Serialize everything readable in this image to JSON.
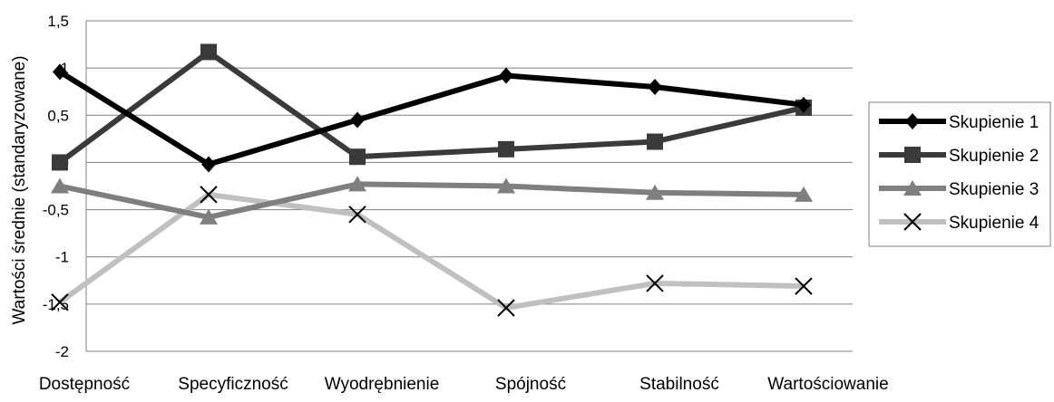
{
  "chart_data": {
    "type": "line",
    "title": "",
    "xlabel": "",
    "ylabel": "Wartości średnie (standaryzowane)",
    "categories": [
      "Dostępność",
      "Specyficzność",
      "Wyodrębnienie",
      "Spójność",
      "Stabilność",
      "Wartościowanie"
    ],
    "ylim": [
      -2,
      1.5
    ],
    "yticks": [
      1.5,
      1,
      0.5,
      0,
      -0.5,
      -1,
      -1.5,
      -2
    ],
    "ytick_labels": [
      "1,5",
      "1",
      "0,5",
      "0",
      "-0,5",
      "-1",
      "-1,5",
      "-2"
    ],
    "grid": true,
    "legend_position": "right",
    "series": [
      {
        "name": "Skupienie 1",
        "values": [
          0.96,
          -0.02,
          0.45,
          0.92,
          0.8,
          0.61
        ],
        "color": "#000000",
        "marker": "diamond"
      },
      {
        "name": "Skupienie 2",
        "values": [
          0.0,
          1.17,
          0.06,
          0.14,
          0.22,
          0.58
        ],
        "color": "#3a3a3a",
        "marker": "square"
      },
      {
        "name": "Skupienie 3",
        "values": [
          -0.25,
          -0.58,
          -0.23,
          -0.25,
          -0.32,
          -0.34
        ],
        "color": "#7f7f7f",
        "marker": "triangle"
      },
      {
        "name": "Skupienie 4",
        "values": [
          -1.48,
          -0.34,
          -0.55,
          -1.54,
          -1.28,
          -1.31
        ],
        "color": "#c0c0c0",
        "marker": "x"
      }
    ]
  }
}
